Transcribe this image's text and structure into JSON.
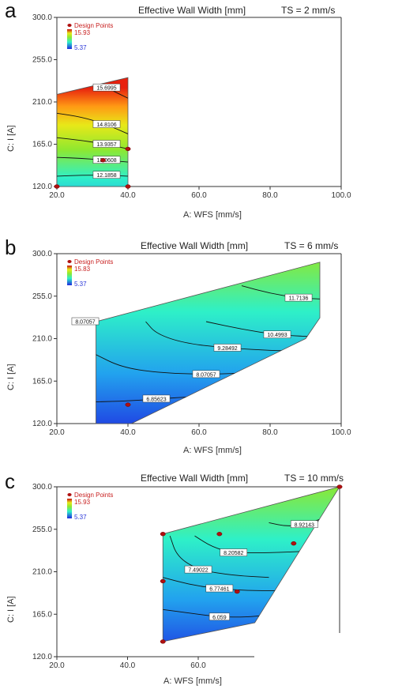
{
  "chart_data": [
    {
      "type": "contour",
      "panel_letter": "a",
      "title": "Effective Wall Width [mm]",
      "ts_label": "TS = 2 mm/s",
      "xlabel": "A: WFS [mm/s]",
      "ylabel": "C:  I  [A]",
      "xlim": [
        20.0,
        100.0
      ],
      "ylim": [
        120.0,
        300.0
      ],
      "xticks": [
        "20.0",
        "40.0",
        "60.0",
        "80.0",
        "100.0"
      ],
      "yticks": [
        "120.0",
        "165.0",
        "210.0",
        "255.0",
        "300.0"
      ],
      "legend": {
        "title": "Design Points",
        "high": "15.93",
        "low": "5.37"
      },
      "region": [
        [
          20,
          120
        ],
        [
          40,
          120
        ],
        [
          40,
          236
        ],
        [
          20,
          218
        ]
      ],
      "contours": [
        {
          "label": "15.6995",
          "value": 15.6995,
          "points": [
            [
              31,
              236
            ],
            [
              34,
              225
            ],
            [
              40,
              214
            ]
          ]
        },
        {
          "label": "14.8106",
          "value": 14.8106,
          "points": [
            [
              20,
              198
            ],
            [
              27,
              194
            ],
            [
              34,
              186
            ],
            [
              40,
              176
            ]
          ]
        },
        {
          "label": "13.9357",
          "value": 13.9357,
          "points": [
            [
              20,
              172
            ],
            [
              27,
              169
            ],
            [
              34,
              165
            ],
            [
              40,
              160
            ]
          ]
        },
        {
          "label": "13.0608",
          "value": 13.0608,
          "points": [
            [
              20,
              151
            ],
            [
              27,
              150
            ],
            [
              34,
              148
            ],
            [
              40,
              146
            ]
          ]
        },
        {
          "label": "12.1858",
          "value": 12.1858,
          "points": [
            [
              20,
              131
            ],
            [
              27,
              132
            ],
            [
              34,
              132
            ],
            [
              40,
              131
            ]
          ]
        }
      ],
      "design_points": [
        [
          20,
          120
        ],
        [
          40,
          120
        ],
        [
          40,
          160
        ],
        [
          33,
          148
        ]
      ]
    },
    {
      "type": "contour",
      "panel_letter": "b",
      "title": "Effective Wall Width [mm]",
      "ts_label": "TS = 6 mm/s",
      "xlabel": "A: WFS [mm/s]",
      "ylabel": "C:  I  [A]",
      "xlim": [
        20.0,
        100.0
      ],
      "ylim": [
        120.0,
        300.0
      ],
      "xticks": [
        "20.0",
        "40.0",
        "60.0",
        "80.0",
        "100.0"
      ],
      "yticks": [
        "120.0",
        "165.0",
        "210.0",
        "255.0",
        "300.0"
      ],
      "legend": {
        "title": "Design Points",
        "high": "15.83",
        "low": "5.37"
      },
      "region": [
        [
          31,
          120
        ],
        [
          41,
          120
        ],
        [
          90,
          210
        ],
        [
          94,
          232
        ],
        [
          94,
          291
        ],
        [
          31,
          228
        ]
      ],
      "contours": [
        {
          "label": "11.7136",
          "value": 11.7136,
          "points": [
            [
              72,
              266
            ],
            [
              80,
              258
            ],
            [
              88,
              253
            ],
            [
              94,
              252
            ]
          ]
        },
        {
          "label": "10.4993",
          "value": 10.4993,
          "points": [
            [
              62,
              228
            ],
            [
              72,
              220
            ],
            [
              82,
              214
            ],
            [
              92,
              212
            ]
          ]
        },
        {
          "label": "9.28492",
          "value": 9.28492,
          "points": [
            [
              45,
              228
            ],
            [
              48,
              215
            ],
            [
              56,
              205
            ],
            [
              68,
              200
            ],
            [
              82,
              197
            ],
            [
              90,
              197
            ]
          ]
        },
        {
          "label": "8.07057",
          "value": 8.07057,
          "points": [
            [
              31,
              193
            ],
            [
              38,
              180
            ],
            [
              48,
              174
            ],
            [
              62,
              172
            ],
            [
              76,
              174
            ],
            [
              86,
              178
            ]
          ]
        },
        {
          "label": "6.85623",
          "value": 6.85623,
          "points": [
            [
              31,
              143
            ],
            [
              40,
              144
            ],
            [
              48,
              146
            ],
            [
              56,
              148
            ],
            [
              62,
              149
            ]
          ]
        }
      ],
      "region_labels": [
        {
          "label": "8.07057",
          "x": 28,
          "y": 228
        }
      ],
      "design_points": [
        [
          40,
          140
        ]
      ]
    },
    {
      "type": "contour",
      "panel_letter": "c",
      "title": "Effective Wall Width [mm]",
      "ts_label": "TS = 10 mm/s",
      "xlabel": "A: WFS [mm/s]",
      "ylabel": "C:  I  [A]",
      "xlim": [
        20.0,
        100.0
      ],
      "ylim": [
        120.0,
        300.0
      ],
      "xticks": [
        "20.0",
        "40.0",
        "60.0"
      ],
      "yticks": [
        "120.0",
        "165.0",
        "210.0",
        "255.0",
        "300.0"
      ],
      "legend": {
        "title": "Design Points",
        "high": "15.93",
        "low": "5.37"
      },
      "region": [
        [
          50,
          136
        ],
        [
          76,
          156
        ],
        [
          100,
          300
        ],
        [
          50,
          250
        ]
      ],
      "contours": [
        {
          "label": "8.92143",
          "value": 8.92143,
          "points": [
            [
              80,
              262
            ],
            [
              85,
              258
            ],
            [
              90,
              260
            ],
            [
              98,
              270
            ]
          ]
        },
        {
          "label": "8.20582",
          "value": 8.20582,
          "points": [
            [
              59,
              248
            ],
            [
              64,
              236
            ],
            [
              70,
              230
            ],
            [
              80,
              230
            ],
            [
              92,
              232
            ]
          ]
        },
        {
          "label": "7.49022",
          "value": 7.49022,
          "points": [
            [
              52,
              248
            ],
            [
              54,
              226
            ],
            [
              60,
              212
            ],
            [
              70,
              206
            ],
            [
              80,
              204
            ]
          ]
        },
        {
          "label": "6.77461",
          "value": 6.77461,
          "points": [
            [
              50,
              204
            ],
            [
              58,
              196
            ],
            [
              66,
              192
            ],
            [
              74,
              190
            ],
            [
              82,
              190
            ]
          ]
        },
        {
          "label": "6.059",
          "value": 6.059,
          "points": [
            [
              50,
              170
            ],
            [
              58,
              166
            ],
            [
              66,
              162
            ],
            [
              74,
              162
            ],
            [
              79,
              164
            ]
          ]
        }
      ],
      "design_points": [
        [
          50,
          250
        ],
        [
          50,
          200
        ],
        [
          50,
          136
        ],
        [
          66,
          250
        ],
        [
          71,
          189
        ],
        [
          87,
          240
        ],
        [
          100,
          300
        ]
      ]
    }
  ]
}
